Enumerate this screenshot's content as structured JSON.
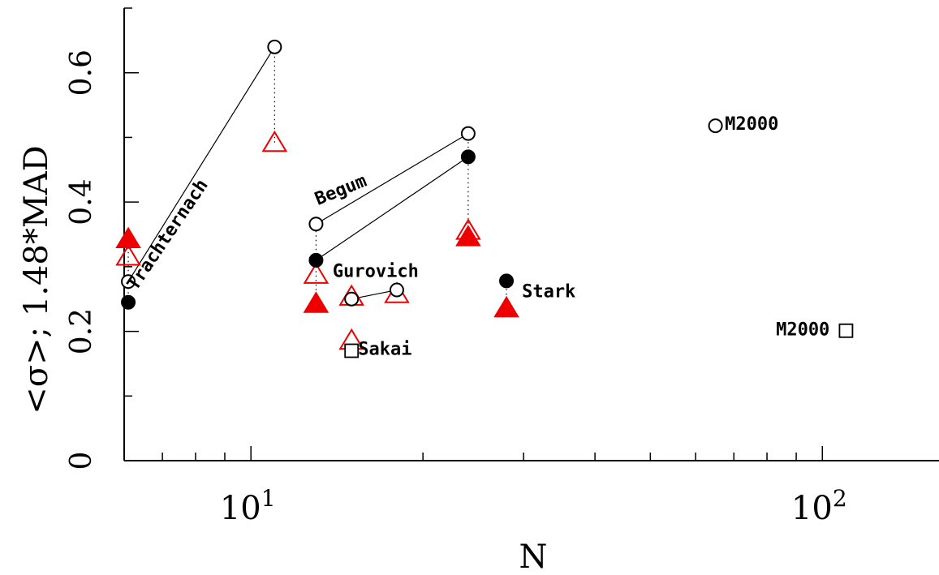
{
  "chart_data": {
    "type": "scatter",
    "xlabel": "N",
    "ylabel": "<σ>;  1.48*MAD",
    "xscale": "log",
    "xlim": [
      6.0,
      160
    ],
    "ylim": [
      0,
      0.7
    ],
    "xticks": [
      {
        "value": 10,
        "base": "10",
        "exp": "1"
      },
      {
        "value": 100,
        "base": "10",
        "exp": "2"
      }
    ],
    "yticks": [
      {
        "value": 0,
        "label": "0"
      },
      {
        "value": 0.2,
        "label": "0.2"
      },
      {
        "value": 0.4,
        "label": "0.4"
      },
      {
        "value": 0.6,
        "label": "0.6"
      }
    ],
    "colors": {
      "axis": "#000000",
      "triangle": "#ee0000"
    },
    "marker_styles": [
      "open-circle",
      "filled-circle",
      "open-triangle",
      "filled-triangle",
      "open-square"
    ],
    "points": [
      {
        "x": 6.1,
        "y": 0.277,
        "marker": "open-circle"
      },
      {
        "x": 11.0,
        "y": 0.64,
        "marker": "open-circle"
      },
      {
        "x": 13.0,
        "y": 0.366,
        "marker": "open-circle"
      },
      {
        "x": 24.0,
        "y": 0.506,
        "marker": "open-circle"
      },
      {
        "x": 15.0,
        "y": 0.25,
        "marker": "open-circle"
      },
      {
        "x": 18.0,
        "y": 0.264,
        "marker": "open-circle"
      },
      {
        "x": 65.0,
        "y": 0.518,
        "marker": "open-circle"
      },
      {
        "x": 6.1,
        "y": 0.245,
        "marker": "filled-circle"
      },
      {
        "x": 13.0,
        "y": 0.31,
        "marker": "filled-circle"
      },
      {
        "x": 24.0,
        "y": 0.47,
        "marker": "filled-circle"
      },
      {
        "x": 28.0,
        "y": 0.278,
        "marker": "filled-circle"
      },
      {
        "x": 6.1,
        "y": 0.316,
        "marker": "open-triangle"
      },
      {
        "x": 11.0,
        "y": 0.492,
        "marker": "open-triangle"
      },
      {
        "x": 13.0,
        "y": 0.288,
        "marker": "open-triangle"
      },
      {
        "x": 15.0,
        "y": 0.254,
        "marker": "open-triangle"
      },
      {
        "x": 18.0,
        "y": 0.258,
        "marker": "open-triangle"
      },
      {
        "x": 15.0,
        "y": 0.186,
        "marker": "open-triangle"
      },
      {
        "x": 24.0,
        "y": 0.356,
        "marker": "open-triangle"
      },
      {
        "x": 6.1,
        "y": 0.343,
        "marker": "filled-triangle"
      },
      {
        "x": 13.0,
        "y": 0.243,
        "marker": "filled-triangle"
      },
      {
        "x": 24.0,
        "y": 0.346,
        "marker": "filled-triangle"
      },
      {
        "x": 28.0,
        "y": 0.236,
        "marker": "filled-triangle"
      },
      {
        "x": 15.0,
        "y": 0.17,
        "marker": "open-square"
      },
      {
        "x": 110.0,
        "y": 0.201,
        "marker": "open-square"
      }
    ],
    "solid_lines": [
      [
        [
          6.1,
          0.277
        ],
        [
          11.0,
          0.64
        ]
      ],
      [
        [
          13.0,
          0.366
        ],
        [
          24.0,
          0.506
        ]
      ],
      [
        [
          13.0,
          0.31
        ],
        [
          24.0,
          0.47
        ]
      ],
      [
        [
          15.0,
          0.25
        ],
        [
          18.0,
          0.264
        ]
      ]
    ],
    "dotted_lines": [
      [
        [
          6.1,
          0.245
        ],
        [
          6.1,
          0.343
        ]
      ],
      [
        [
          11.0,
          0.492
        ],
        [
          11.0,
          0.64
        ]
      ],
      [
        [
          13.0,
          0.243
        ],
        [
          13.0,
          0.366
        ]
      ],
      [
        [
          24.0,
          0.346
        ],
        [
          24.0,
          0.506
        ]
      ],
      [
        [
          28.0,
          0.236
        ],
        [
          28.0,
          0.278
        ]
      ]
    ],
    "annotations": [
      {
        "text": "Trachternach",
        "x": 6.3,
        "y": 0.262,
        "rotate": -56,
        "anchor": "start"
      },
      {
        "text": "Begum",
        "x": 13.1,
        "y": 0.395,
        "rotate": -22,
        "anchor": "start"
      },
      {
        "text": "Gurovich",
        "x": 13.9,
        "y": 0.284,
        "rotate": 0,
        "anchor": "start"
      },
      {
        "text": "Sakai",
        "x": 15.4,
        "y": 0.164,
        "rotate": 0,
        "anchor": "start"
      },
      {
        "text": "Stark",
        "x": 29.8,
        "y": 0.253,
        "rotate": 0,
        "anchor": "start"
      },
      {
        "text": "M2000",
        "x": 67.5,
        "y": 0.512,
        "rotate": 0,
        "anchor": "start"
      },
      {
        "text": "M2000",
        "x": 103.0,
        "y": 0.194,
        "rotate": 0,
        "anchor": "end"
      }
    ]
  }
}
